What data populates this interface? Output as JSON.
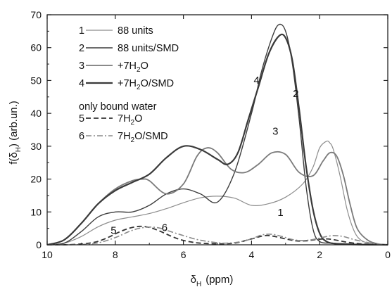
{
  "chart_data": {
    "type": "line",
    "xlabel_main": "δ",
    "xlabel_sub": "H",
    "xlabel_unit": "(ppm)",
    "ylabel_main": "f(δ",
    "ylabel_sub": "H",
    "ylabel_unit": ") (arb.un.)",
    "xlim": [
      10,
      0
    ],
    "ylim": [
      0,
      70
    ],
    "x_ticks": [
      10,
      8,
      6,
      4,
      2,
      0
    ],
    "y_ticks": [
      0,
      10,
      20,
      30,
      40,
      50,
      60,
      70
    ],
    "grid": false,
    "legend_position": "top-left",
    "legend": [
      {
        "number": "1",
        "label": "88 units",
        "color": "#8c8c8c",
        "dash": "solid",
        "width": 1.2
      },
      {
        "number": "2",
        "label": "88 units/SMD",
        "color": "#3d3d3d",
        "dash": "solid",
        "width": 1.4
      },
      {
        "number": "3",
        "label": "+7H",
        "sub": "2",
        "label_tail": "O",
        "color": "#7a7a7a",
        "dash": "solid",
        "width": 1.8
      },
      {
        "number": "4",
        "label": "+7H",
        "sub": "2",
        "label_tail": "O/SMD",
        "color": "#3a3a3a",
        "dash": "solid",
        "width": 2.2
      }
    ],
    "legend_note": "only bound water",
    "legend_bound": [
      {
        "number": "5",
        "label": "7H",
        "sub": "2",
        "label_tail": "O",
        "color": "#333333",
        "dash": "7,4",
        "width": 1.8
      },
      {
        "number": "6",
        "label": "7H",
        "sub": "2",
        "label_tail": "O/SMD",
        "color": "#8a8a8a",
        "dash": "8,3,2,3",
        "width": 1.6
      }
    ],
    "curve_labels": [
      {
        "text": "1",
        "x": 3.15,
        "y": 8.8
      },
      {
        "text": "2",
        "x": 2.7,
        "y": 45
      },
      {
        "text": "3",
        "x": 3.3,
        "y": 33.5
      },
      {
        "text": "4",
        "x": 3.85,
        "y": 49
      },
      {
        "text": "5",
        "x": 8.05,
        "y": 3.3
      },
      {
        "text": "6",
        "x": 6.55,
        "y": 4.2
      }
    ],
    "series": [
      {
        "name": "1",
        "color": "#8c8c8c",
        "dash": "solid",
        "width": 1.2,
        "x": [
          10,
          9.5,
          9,
          8.5,
          8,
          7.5,
          7,
          6.5,
          6,
          5.5,
          5,
          4.5,
          4,
          3.5,
          3,
          2.5,
          2.2,
          2,
          1.8,
          1.7,
          1.6,
          1.4,
          1.2,
          1,
          0.8,
          0.5,
          0
        ],
        "y": [
          0,
          0.5,
          2.5,
          5.5,
          7.5,
          8.5,
          9.5,
          11,
          12.8,
          14.3,
          14.8,
          14.2,
          12,
          12.5,
          14.5,
          18.5,
          23.5,
          29.5,
          31.5,
          31,
          29,
          21,
          11,
          4.5,
          1.5,
          0.4,
          0
        ]
      },
      {
        "name": "2",
        "color": "#3d3d3d",
        "dash": "solid",
        "width": 1.4,
        "x": [
          10,
          9.5,
          9,
          8.5,
          8,
          7.5,
          7,
          6.5,
          6,
          5.5,
          5,
          4.5,
          4,
          3.7,
          3.4,
          3.2,
          3.0,
          2.8,
          2.6,
          2.4,
          2.2,
          2,
          1.6,
          1.2,
          0.8,
          0
        ],
        "y": [
          0,
          0.5,
          4,
          8.5,
          10,
          10,
          12,
          15.5,
          17,
          15.5,
          13,
          22,
          40,
          53,
          63,
          67,
          65,
          55,
          38,
          18,
          5,
          1,
          0.5,
          0.3,
          0.1,
          0
        ]
      },
      {
        "name": "3",
        "color": "#7a7a7a",
        "dash": "solid",
        "width": 1.8,
        "x": [
          10,
          9.5,
          9,
          8.5,
          8,
          7.5,
          7.2,
          7,
          6.5,
          6,
          5.6,
          5.3,
          5,
          4.6,
          4.2,
          3.8,
          3.4,
          3.0,
          2.6,
          2.2,
          1.9,
          1.7,
          1.5,
          1.3,
          1.1,
          0.9,
          0.6,
          0.3,
          0
        ],
        "y": [
          0,
          1.5,
          6.5,
          12.5,
          17,
          19.5,
          20,
          19.5,
          15.5,
          18.5,
          27,
          29.5,
          28,
          23,
          22,
          24.5,
          28,
          27.5,
          22,
          21,
          25.5,
          28,
          27,
          21,
          12,
          5,
          1.5,
          0.3,
          0
        ]
      },
      {
        "name": "4",
        "color": "#3a3a3a",
        "dash": "solid",
        "width": 2.2,
        "x": [
          10,
          9.5,
          9,
          8.5,
          8,
          7.5,
          7,
          6.5,
          6,
          5.5,
          5,
          4.7,
          4.4,
          4.1,
          3.8,
          3.5,
          3.2,
          3.0,
          2.8,
          2.6,
          2.4,
          2.2,
          2.0,
          1.8,
          1.5,
          1,
          0
        ],
        "y": [
          0,
          1.5,
          6.5,
          12.5,
          16.5,
          19,
          21.5,
          26.5,
          30,
          29,
          26,
          24.5,
          28,
          38,
          48,
          58,
          63.5,
          63,
          56,
          41,
          24,
          11,
          3.5,
          1,
          0.3,
          0.1,
          0
        ]
      },
      {
        "name": "5",
        "color": "#333333",
        "dash": "7,4",
        "width": 1.8,
        "x": [
          10,
          9.2,
          8.6,
          8.2,
          7.9,
          7.6,
          7.3,
          7.0,
          6.7,
          6.4,
          6.1,
          5.8,
          5.5,
          5.0,
          4.5,
          4.0,
          3.6,
          3.3,
          3.0,
          2.7,
          2.4,
          2.1,
          1.8,
          1.5,
          1.2,
          0.8,
          0.4,
          0
        ],
        "y": [
          0,
          0.1,
          0.8,
          2.3,
          3.8,
          5,
          5.6,
          5.3,
          4.2,
          2.8,
          1.6,
          0.9,
          0.5,
          0.3,
          0.5,
          1.8,
          2.8,
          2.5,
          1.8,
          1.2,
          1.2,
          1.6,
          1.8,
          1.4,
          0.8,
          0.3,
          0.1,
          0
        ]
      },
      {
        "name": "6",
        "color": "#8a8a8a",
        "dash": "8,3,2,3",
        "width": 1.6,
        "x": [
          10,
          9,
          8.5,
          8.0,
          7.6,
          7.3,
          7.0,
          6.7,
          6.4,
          6.0,
          5.6,
          5.2,
          4.8,
          4.4,
          4.0,
          3.7,
          3.4,
          3.1,
          2.8,
          2.5,
          2.2,
          1.9,
          1.6,
          1.3,
          1.0,
          0.6,
          0.3,
          0
        ],
        "y": [
          0,
          0.1,
          0.6,
          2.2,
          4,
          5,
          5.4,
          5.1,
          4.1,
          2.8,
          1.6,
          0.9,
          0.5,
          0.8,
          1.8,
          3,
          3.2,
          2.5,
          1.6,
          1.3,
          1.6,
          2.3,
          2.8,
          2.5,
          1.6,
          0.7,
          0.2,
          0
        ]
      }
    ]
  }
}
